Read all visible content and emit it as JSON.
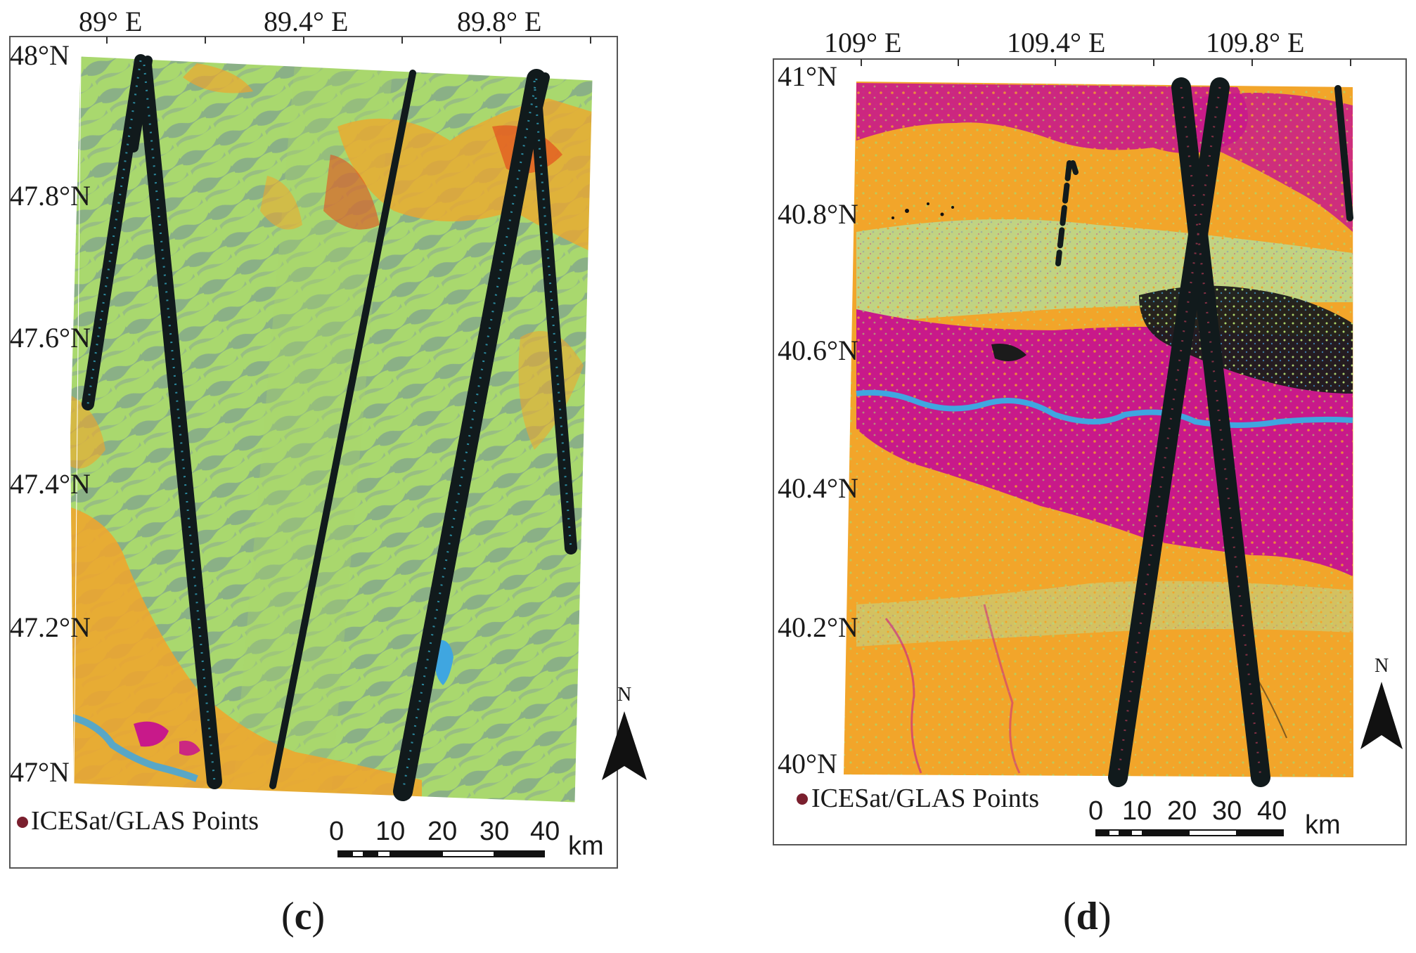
{
  "panels": [
    {
      "id": "c",
      "caption": "(c)",
      "caption_letter": "c",
      "lon_labels": [
        "89° E",
        "89.4° E",
        "89.8° E"
      ],
      "lat_labels": [
        "48°N",
        "47.8°N",
        "47.6°N",
        "47.4°N",
        "47.2°N",
        "47°N"
      ],
      "legend_label": "ICESat/GLAS Points",
      "scale_ticks": [
        "0",
        "10",
        "20",
        "30",
        "40"
      ],
      "scale_unit": "km",
      "north_label": "N"
    },
    {
      "id": "d",
      "caption": "(d)",
      "caption_letter": "d",
      "lon_labels": [
        "109° E",
        "109.4° E",
        "109.8° E"
      ],
      "lat_labels": [
        "41°N",
        "40.8°N",
        "40.6°N",
        "40.4°N",
        "40.2°N",
        "40°N"
      ],
      "legend_label": "ICESat/GLAS Points",
      "scale_ticks": [
        "0",
        "10",
        "20",
        "30",
        "40"
      ],
      "scale_unit": "km",
      "north_label": "N"
    }
  ],
  "colors": {
    "grassland": "#a9d86e",
    "forest_shade": "#7fa38a",
    "cropland": "#f2a52a",
    "bare": "#e3501e",
    "urban": "#c8198a",
    "water": "#3fa6e0",
    "track": "#111a1c",
    "legend_dot": "#7a1f2e"
  }
}
